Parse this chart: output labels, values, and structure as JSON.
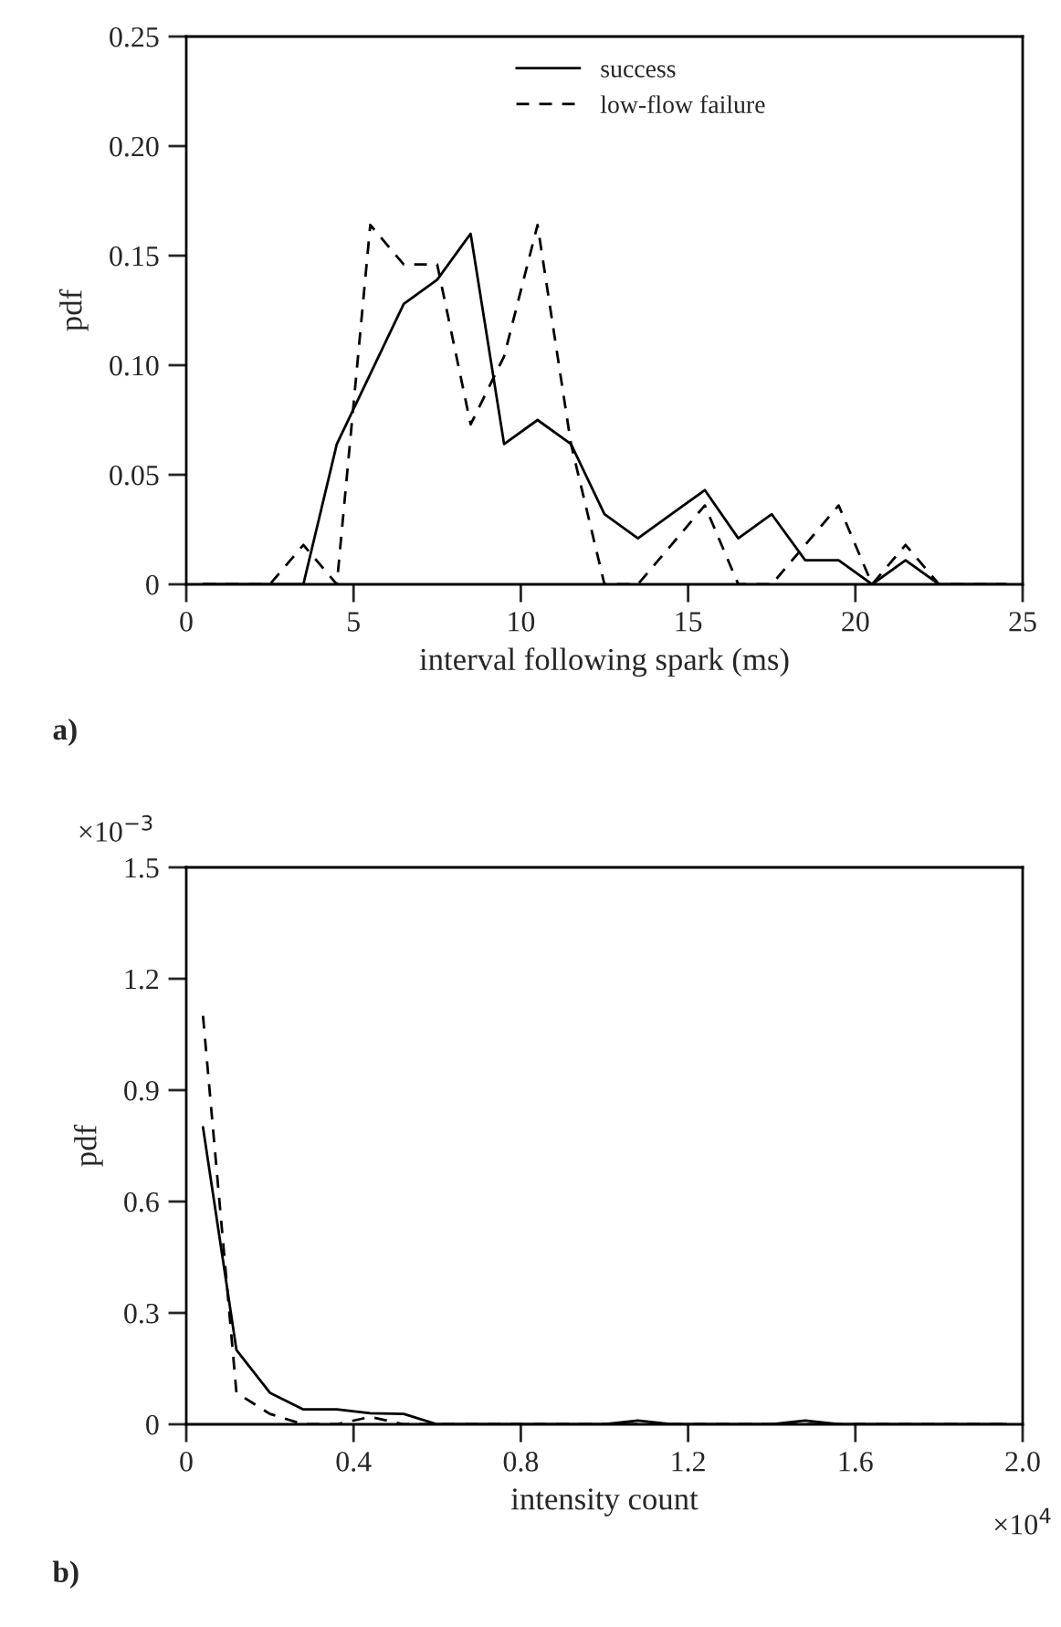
{
  "chart_data": [
    {
      "type": "line",
      "xlabel": "interval following spark (ms)",
      "ylabel": "pdf",
      "xlim": [
        0,
        25
      ],
      "ylim": [
        0,
        0.25
      ],
      "xticks": [
        0,
        5,
        10,
        15,
        20,
        25
      ],
      "yticks": [
        0,
        0.05,
        {
          "value": 0.1,
          "label": "0.10"
        },
        0.15,
        {
          "value": 0.2,
          "label": "0.20"
        },
        0.25
      ],
      "legend": "top right",
      "grid": false,
      "marker": "none",
      "series": [
        {
          "name": "success",
          "color": "#000000",
          "line_style": "solid",
          "x": [
            0.5,
            1.5,
            2.5,
            3.5,
            4.5,
            5.5,
            6.5,
            7.5,
            8.5,
            9.5,
            10.5,
            11.5,
            12.5,
            13.5,
            14.5,
            15.5,
            16.5,
            17.5,
            18.5,
            19.5,
            20.5,
            21.5,
            22.5,
            23.5,
            24.5
          ],
          "values": [
            0,
            0,
            0,
            0,
            0.064,
            0.096,
            0.128,
            0.139,
            0.16,
            0.064,
            0.075,
            0.064,
            0.032,
            0.021,
            0.032,
            0.043,
            0.021,
            0.032,
            0.011,
            0.011,
            0,
            0.011,
            0,
            0,
            0
          ]
        },
        {
          "name": "low-flow failure",
          "color": "#000000",
          "line_style": "dashed",
          "x": [
            0.5,
            1.5,
            2.5,
            3.5,
            4.5,
            5.5,
            6.5,
            7.5,
            8.5,
            9.5,
            10.5,
            11.5,
            12.5,
            13.5,
            14.5,
            15.5,
            16.5,
            17.5,
            18.5,
            19.5,
            20.5,
            21.5,
            22.5,
            23.5,
            24.5
          ],
          "values": [
            0,
            0,
            0,
            0.018,
            0,
            0.164,
            0.146,
            0.146,
            0.073,
            0.104,
            0.164,
            0.064,
            0,
            0,
            0.018,
            0.036,
            0,
            0,
            0.018,
            0.036,
            0,
            0.018,
            0,
            0,
            0
          ]
        }
      ],
      "annotations": [
        "a)"
      ]
    },
    {
      "type": "line",
      "xlabel": "intensity count",
      "ylabel": "pdf",
      "xlim": [
        0,
        2.0
      ],
      "ylim": [
        0,
        1.5
      ],
      "xticks": [
        0,
        0.4,
        0.8,
        1.2,
        1.6,
        {
          "value": 2.0,
          "label": "2.0"
        }
      ],
      "yticks": [
        0,
        0.3,
        0.6,
        0.9,
        1.2,
        1.5
      ],
      "grid": false,
      "marker": "none",
      "series": [
        {
          "color": "#000000",
          "line_style": "solid",
          "x": [
            0.04,
            0.12,
            0.2,
            0.28,
            0.36,
            0.44,
            0.52,
            0.6,
            0.68,
            0.76,
            0.84,
            0.92,
            1.0,
            1.08,
            1.16,
            1.24,
            1.32,
            1.4,
            1.48,
            1.56,
            1.64,
            1.72,
            1.8,
            1.88,
            1.96
          ],
          "values": [
            0.8,
            0.2,
            0.085,
            0.04,
            0.04,
            0.03,
            0.028,
            0,
            0,
            0,
            0,
            0,
            0,
            0.01,
            0,
            0,
            0,
            0,
            0.01,
            0,
            0,
            0,
            0,
            0,
            0
          ]
        },
        {
          "color": "#000000",
          "line_style": "dashed",
          "x": [
            0.04,
            0.12,
            0.2,
            0.28,
            0.36,
            0.44,
            0.52,
            0.6,
            0.68,
            0.76,
            0.84,
            0.92,
            1.0,
            1.08,
            1.16,
            1.24,
            1.32,
            1.4,
            1.48,
            1.56,
            1.64,
            1.72,
            1.8,
            1.88,
            1.96
          ],
          "values": [
            1.1,
            0.085,
            0.028,
            0,
            0,
            0.02,
            0,
            0,
            0,
            0,
            0,
            0,
            0,
            0,
            0,
            0,
            0,
            0,
            0,
            0,
            0,
            0,
            0,
            0,
            0
          ]
        }
      ],
      "annotations": [
        "×10$^{−3}$",
        "×10$^{4}$",
        "b)"
      ]
    }
  ]
}
